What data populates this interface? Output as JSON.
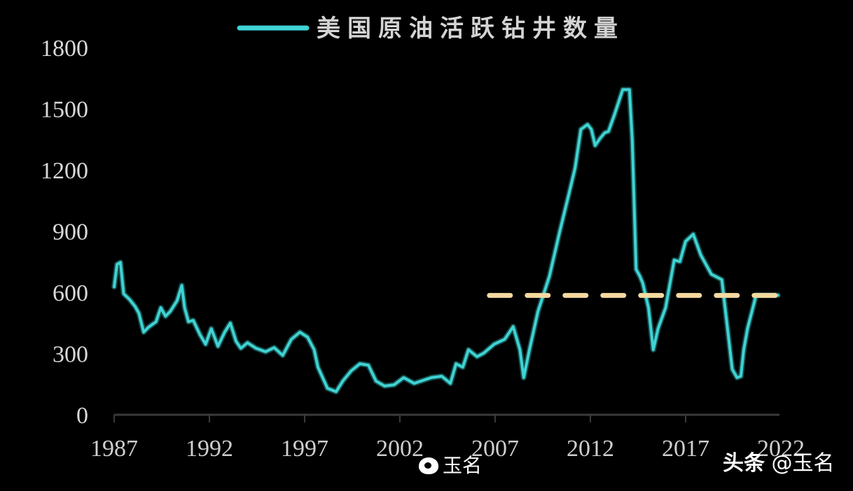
{
  "chart_data": {
    "type": "line",
    "title": "",
    "legend": {
      "position": "top-center",
      "entries": [
        {
          "label": "美国原油活跃钻井数量",
          "color": "#3fd3d3"
        }
      ]
    },
    "xlabel": "",
    "ylabel": "",
    "xlim": [
      1987,
      2022.5
    ],
    "ylim": [
      0,
      1800
    ],
    "grid": false,
    "yticks": [
      0,
      300,
      600,
      900,
      1200,
      1500,
      1800
    ],
    "ytick_labels": [
      "0",
      "300",
      "600",
      "900",
      "1200",
      "1500",
      "1800"
    ],
    "xticks": [
      1987,
      1992,
      1997,
      2002,
      2007,
      2012,
      2017,
      2022
    ],
    "xtick_labels": [
      "1987",
      "1992",
      "1997",
      "2002",
      "2007",
      "2012",
      "2017",
      "2022"
    ],
    "series": [
      {
        "name": "美国原油活跃钻井数量",
        "color": "#3fd3d3",
        "x": [
          1987.0,
          1987.15,
          1987.33,
          1987.5,
          1987.8,
          1988.1,
          1988.3,
          1988.55,
          1988.8,
          1989.2,
          1989.45,
          1989.7,
          1989.95,
          1990.3,
          1990.55,
          1990.7,
          1990.9,
          1991.15,
          1991.5,
          1991.8,
          1992.1,
          1992.45,
          1992.8,
          1993.1,
          1993.4,
          1993.65,
          1994.0,
          1994.45,
          1994.95,
          1995.4,
          1995.85,
          1996.3,
          1996.75,
          1997.15,
          1997.5,
          1997.7,
          1998.2,
          1998.65,
          1999.0,
          1999.45,
          1999.9,
          2000.35,
          2000.75,
          2001.2,
          2001.7,
          2002.2,
          2002.75,
          2003.1,
          2003.65,
          2004.2,
          2004.65,
          2004.95,
          2005.3,
          2005.6,
          2006.05,
          2006.4,
          2006.95,
          2007.5,
          2007.95,
          2008.3,
          2008.5,
          2008.8,
          2009.25,
          2009.85,
          2010.4,
          2010.85,
          2011.2,
          2011.5,
          2011.85,
          2012.05,
          2012.25,
          2012.5,
          2012.75,
          2012.95,
          2013.25,
          2013.7,
          2014.05,
          2014.2,
          2014.4,
          2014.6,
          2014.75,
          2015.05,
          2015.3,
          2015.55,
          2015.95,
          2016.4,
          2016.7,
          2017.0,
          2017.4,
          2017.8,
          2018.35,
          2018.9,
          2019.45,
          2019.7,
          2019.9,
          2020.05,
          2020.25,
          2020.7,
          2021.25,
          2021.85
        ],
        "values": [
          627,
          737,
          747,
          593,
          566,
          531,
          497,
          405,
          429,
          456,
          525,
          483,
          507,
          559,
          634,
          525,
          456,
          463,
          394,
          346,
          422,
          336,
          405,
          449,
          360,
          326,
          353,
          326,
          309,
          329,
          291,
          370,
          405,
          381,
          319,
          233,
          130,
          113,
          165,
          216,
          250,
          243,
          165,
          141,
          147,
          182,
          154,
          165,
          182,
          189,
          154,
          250,
          233,
          319,
          285,
          302,
          346,
          370,
          432,
          319,
          182,
          319,
          507,
          679,
          902,
          1073,
          1210,
          1399,
          1423,
          1399,
          1320,
          1354,
          1382,
          1389,
          1467,
          1594,
          1594,
          1347,
          713,
          679,
          645,
          525,
          319,
          422,
          525,
          758,
          751,
          850,
          885,
          782,
          689,
          662,
          223,
          182,
          189,
          319,
          422,
          586,
          586,
          586
        ]
      },
      {
        "name": "参考水平线",
        "color": "#f5d9a0",
        "style": "dashed",
        "x": [
          2006.7,
          2022.0
        ],
        "values": [
          585,
          585
        ]
      }
    ],
    "annotations": []
  },
  "watermarks": {
    "weibo_name": "玉名",
    "toutiao_brand": "头条",
    "toutiao_handle": "@玉名"
  }
}
